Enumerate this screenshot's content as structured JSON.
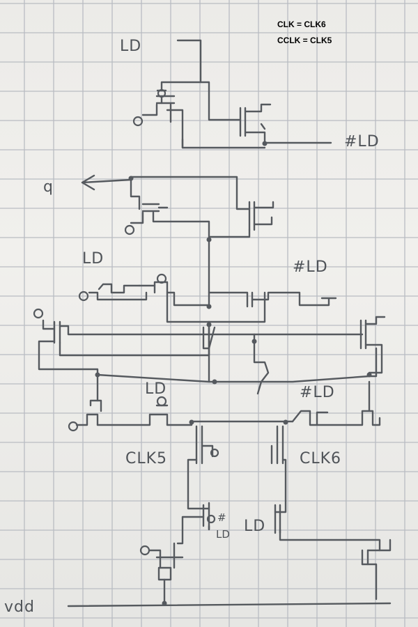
{
  "notes": {
    "line1": "CLK = CLK6",
    "line2": "CCLK = CLK5"
  },
  "labels": {
    "ld_top": "LD",
    "not_ld_top": "#LD",
    "q_output": "q",
    "ld_left": "LD",
    "not_ld_right": "#LD",
    "ld_mid": "LD",
    "not_ld_mid": "#LD",
    "clk5": "CLK5",
    "clk6": "CLK6",
    "not_ld_low": "#",
    "not_ld_low_b": "LD",
    "ld_low": "LD",
    "vdd": "vdd"
  },
  "colors": {
    "ink": "#55595e",
    "grid": "#b9bcc2",
    "paper": "#eceae7"
  }
}
